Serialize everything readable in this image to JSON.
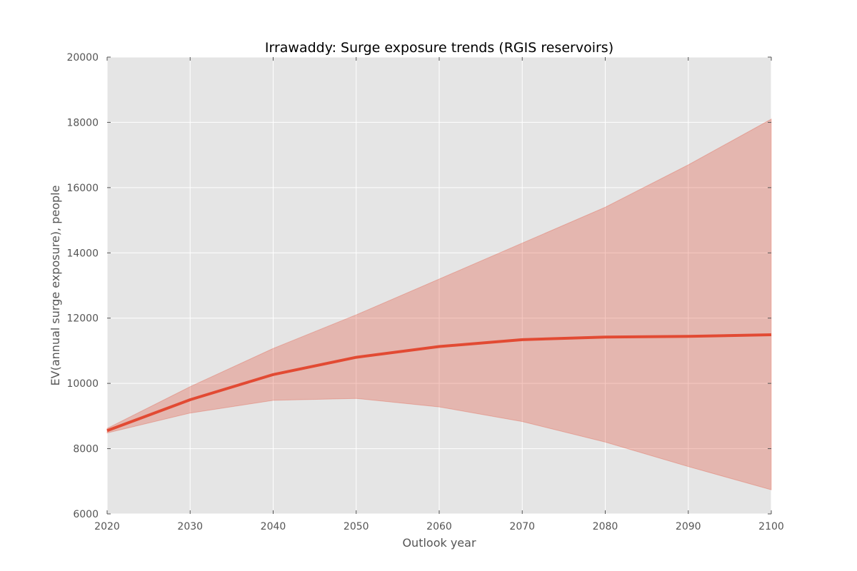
{
  "chart_data": {
    "type": "area",
    "title": "Irrawaddy: Surge exposure trends (RGIS reservoirs)",
    "xlabel": "Outlook year",
    "ylabel": "EV(annual surge exposure), people",
    "xlim": [
      2020,
      2100
    ],
    "ylim": [
      6000,
      20000
    ],
    "x_ticks": [
      2020,
      2030,
      2040,
      2050,
      2060,
      2070,
      2080,
      2090,
      2100
    ],
    "y_ticks": [
      6000,
      8000,
      10000,
      12000,
      14000,
      16000,
      18000,
      20000
    ],
    "grid": true,
    "x": [
      2020,
      2030,
      2040,
      2050,
      2060,
      2070,
      2080,
      2090,
      2100
    ],
    "series": [
      {
        "values": [
          8550,
          9500,
          10270,
          10800,
          11130,
          11340,
          11420,
          11440,
          11490
        ],
        "upper": [
          8620,
          9900,
          11070,
          12100,
          13200,
          14300,
          15400,
          16700,
          18100
        ],
        "lower": [
          8480,
          9090,
          9480,
          9540,
          9280,
          8830,
          8200,
          7450,
          6740
        ]
      }
    ],
    "colors": {
      "line": "#E24A33",
      "band": "#E24A33",
      "plot_background": "#E5E5E5",
      "grid": "#FFFFFF"
    }
  }
}
